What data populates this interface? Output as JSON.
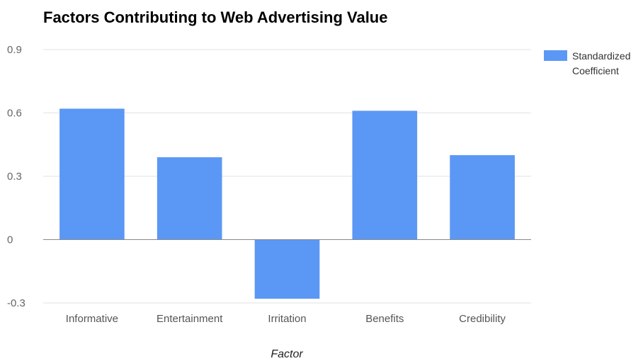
{
  "chart_data": {
    "type": "bar",
    "title": "Factors Contributing to Web Advertising Value",
    "xlabel": "Factor",
    "ylabel": "",
    "categories": [
      "Informative",
      "Entertainment",
      "Irritation",
      "Benefits",
      "Credibility"
    ],
    "series": [
      {
        "name": "Standardized Coefficient",
        "legend_lines": [
          "Standardized",
          "Coefficient"
        ],
        "values": [
          0.62,
          0.39,
          -0.28,
          0.61,
          0.4
        ],
        "color": "#5b97f5"
      }
    ],
    "yticks": [
      {
        "value": 0.9,
        "label": "0.9"
      },
      {
        "value": 0.6,
        "label": "0.6"
      },
      {
        "value": 0.3,
        "label": "0.3"
      },
      {
        "value": 0,
        "label": "0"
      },
      {
        "value": -0.3,
        "label": "-0.3"
      }
    ],
    "ylim": [
      -0.3,
      0.9
    ],
    "grid": true,
    "legend_position": "right"
  }
}
